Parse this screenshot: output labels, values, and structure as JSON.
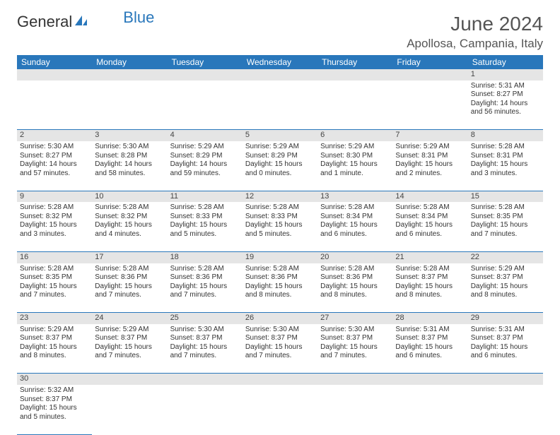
{
  "logo": {
    "general": "General",
    "blue": "Blue"
  },
  "title": "June 2024",
  "location": "Apollosa, Campania, Italy",
  "day_headers": [
    "Sunday",
    "Monday",
    "Tuesday",
    "Wednesday",
    "Thursday",
    "Friday",
    "Saturday"
  ],
  "colors": {
    "header_bg": "#2977bb",
    "header_text": "#ffffff",
    "border": "#2977bb",
    "daynum_bg": "#e5e5e5",
    "body_text": "#333333",
    "title_text": "#555555"
  },
  "weeks": [
    {
      "nums": [
        "",
        "",
        "",
        "",
        "",
        "",
        "1"
      ],
      "cells": [
        null,
        null,
        null,
        null,
        null,
        null,
        {
          "sunrise": "Sunrise: 5:31 AM",
          "sunset": "Sunset: 8:27 PM",
          "day1": "Daylight: 14 hours",
          "day2": "and 56 minutes."
        }
      ]
    },
    {
      "nums": [
        "2",
        "3",
        "4",
        "5",
        "6",
        "7",
        "8"
      ],
      "cells": [
        {
          "sunrise": "Sunrise: 5:30 AM",
          "sunset": "Sunset: 8:27 PM",
          "day1": "Daylight: 14 hours",
          "day2": "and 57 minutes."
        },
        {
          "sunrise": "Sunrise: 5:30 AM",
          "sunset": "Sunset: 8:28 PM",
          "day1": "Daylight: 14 hours",
          "day2": "and 58 minutes."
        },
        {
          "sunrise": "Sunrise: 5:29 AM",
          "sunset": "Sunset: 8:29 PM",
          "day1": "Daylight: 14 hours",
          "day2": "and 59 minutes."
        },
        {
          "sunrise": "Sunrise: 5:29 AM",
          "sunset": "Sunset: 8:29 PM",
          "day1": "Daylight: 15 hours",
          "day2": "and 0 minutes."
        },
        {
          "sunrise": "Sunrise: 5:29 AM",
          "sunset": "Sunset: 8:30 PM",
          "day1": "Daylight: 15 hours",
          "day2": "and 1 minute."
        },
        {
          "sunrise": "Sunrise: 5:29 AM",
          "sunset": "Sunset: 8:31 PM",
          "day1": "Daylight: 15 hours",
          "day2": "and 2 minutes."
        },
        {
          "sunrise": "Sunrise: 5:28 AM",
          "sunset": "Sunset: 8:31 PM",
          "day1": "Daylight: 15 hours",
          "day2": "and 3 minutes."
        }
      ]
    },
    {
      "nums": [
        "9",
        "10",
        "11",
        "12",
        "13",
        "14",
        "15"
      ],
      "cells": [
        {
          "sunrise": "Sunrise: 5:28 AM",
          "sunset": "Sunset: 8:32 PM",
          "day1": "Daylight: 15 hours",
          "day2": "and 3 minutes."
        },
        {
          "sunrise": "Sunrise: 5:28 AM",
          "sunset": "Sunset: 8:32 PM",
          "day1": "Daylight: 15 hours",
          "day2": "and 4 minutes."
        },
        {
          "sunrise": "Sunrise: 5:28 AM",
          "sunset": "Sunset: 8:33 PM",
          "day1": "Daylight: 15 hours",
          "day2": "and 5 minutes."
        },
        {
          "sunrise": "Sunrise: 5:28 AM",
          "sunset": "Sunset: 8:33 PM",
          "day1": "Daylight: 15 hours",
          "day2": "and 5 minutes."
        },
        {
          "sunrise": "Sunrise: 5:28 AM",
          "sunset": "Sunset: 8:34 PM",
          "day1": "Daylight: 15 hours",
          "day2": "and 6 minutes."
        },
        {
          "sunrise": "Sunrise: 5:28 AM",
          "sunset": "Sunset: 8:34 PM",
          "day1": "Daylight: 15 hours",
          "day2": "and 6 minutes."
        },
        {
          "sunrise": "Sunrise: 5:28 AM",
          "sunset": "Sunset: 8:35 PM",
          "day1": "Daylight: 15 hours",
          "day2": "and 7 minutes."
        }
      ]
    },
    {
      "nums": [
        "16",
        "17",
        "18",
        "19",
        "20",
        "21",
        "22"
      ],
      "cells": [
        {
          "sunrise": "Sunrise: 5:28 AM",
          "sunset": "Sunset: 8:35 PM",
          "day1": "Daylight: 15 hours",
          "day2": "and 7 minutes."
        },
        {
          "sunrise": "Sunrise: 5:28 AM",
          "sunset": "Sunset: 8:36 PM",
          "day1": "Daylight: 15 hours",
          "day2": "and 7 minutes."
        },
        {
          "sunrise": "Sunrise: 5:28 AM",
          "sunset": "Sunset: 8:36 PM",
          "day1": "Daylight: 15 hours",
          "day2": "and 7 minutes."
        },
        {
          "sunrise": "Sunrise: 5:28 AM",
          "sunset": "Sunset: 8:36 PM",
          "day1": "Daylight: 15 hours",
          "day2": "and 8 minutes."
        },
        {
          "sunrise": "Sunrise: 5:28 AM",
          "sunset": "Sunset: 8:36 PM",
          "day1": "Daylight: 15 hours",
          "day2": "and 8 minutes."
        },
        {
          "sunrise": "Sunrise: 5:28 AM",
          "sunset": "Sunset: 8:37 PM",
          "day1": "Daylight: 15 hours",
          "day2": "and 8 minutes."
        },
        {
          "sunrise": "Sunrise: 5:29 AM",
          "sunset": "Sunset: 8:37 PM",
          "day1": "Daylight: 15 hours",
          "day2": "and 8 minutes."
        }
      ]
    },
    {
      "nums": [
        "23",
        "24",
        "25",
        "26",
        "27",
        "28",
        "29"
      ],
      "cells": [
        {
          "sunrise": "Sunrise: 5:29 AM",
          "sunset": "Sunset: 8:37 PM",
          "day1": "Daylight: 15 hours",
          "day2": "and 8 minutes."
        },
        {
          "sunrise": "Sunrise: 5:29 AM",
          "sunset": "Sunset: 8:37 PM",
          "day1": "Daylight: 15 hours",
          "day2": "and 7 minutes."
        },
        {
          "sunrise": "Sunrise: 5:30 AM",
          "sunset": "Sunset: 8:37 PM",
          "day1": "Daylight: 15 hours",
          "day2": "and 7 minutes."
        },
        {
          "sunrise": "Sunrise: 5:30 AM",
          "sunset": "Sunset: 8:37 PM",
          "day1": "Daylight: 15 hours",
          "day2": "and 7 minutes."
        },
        {
          "sunrise": "Sunrise: 5:30 AM",
          "sunset": "Sunset: 8:37 PM",
          "day1": "Daylight: 15 hours",
          "day2": "and 7 minutes."
        },
        {
          "sunrise": "Sunrise: 5:31 AM",
          "sunset": "Sunset: 8:37 PM",
          "day1": "Daylight: 15 hours",
          "day2": "and 6 minutes."
        },
        {
          "sunrise": "Sunrise: 5:31 AM",
          "sunset": "Sunset: 8:37 PM",
          "day1": "Daylight: 15 hours",
          "day2": "and 6 minutes."
        }
      ]
    },
    {
      "nums": [
        "30",
        "",
        "",
        "",
        "",
        "",
        ""
      ],
      "cells": [
        {
          "sunrise": "Sunrise: 5:32 AM",
          "sunset": "Sunset: 8:37 PM",
          "day1": "Daylight: 15 hours",
          "day2": "and 5 minutes."
        },
        null,
        null,
        null,
        null,
        null,
        null
      ]
    }
  ]
}
